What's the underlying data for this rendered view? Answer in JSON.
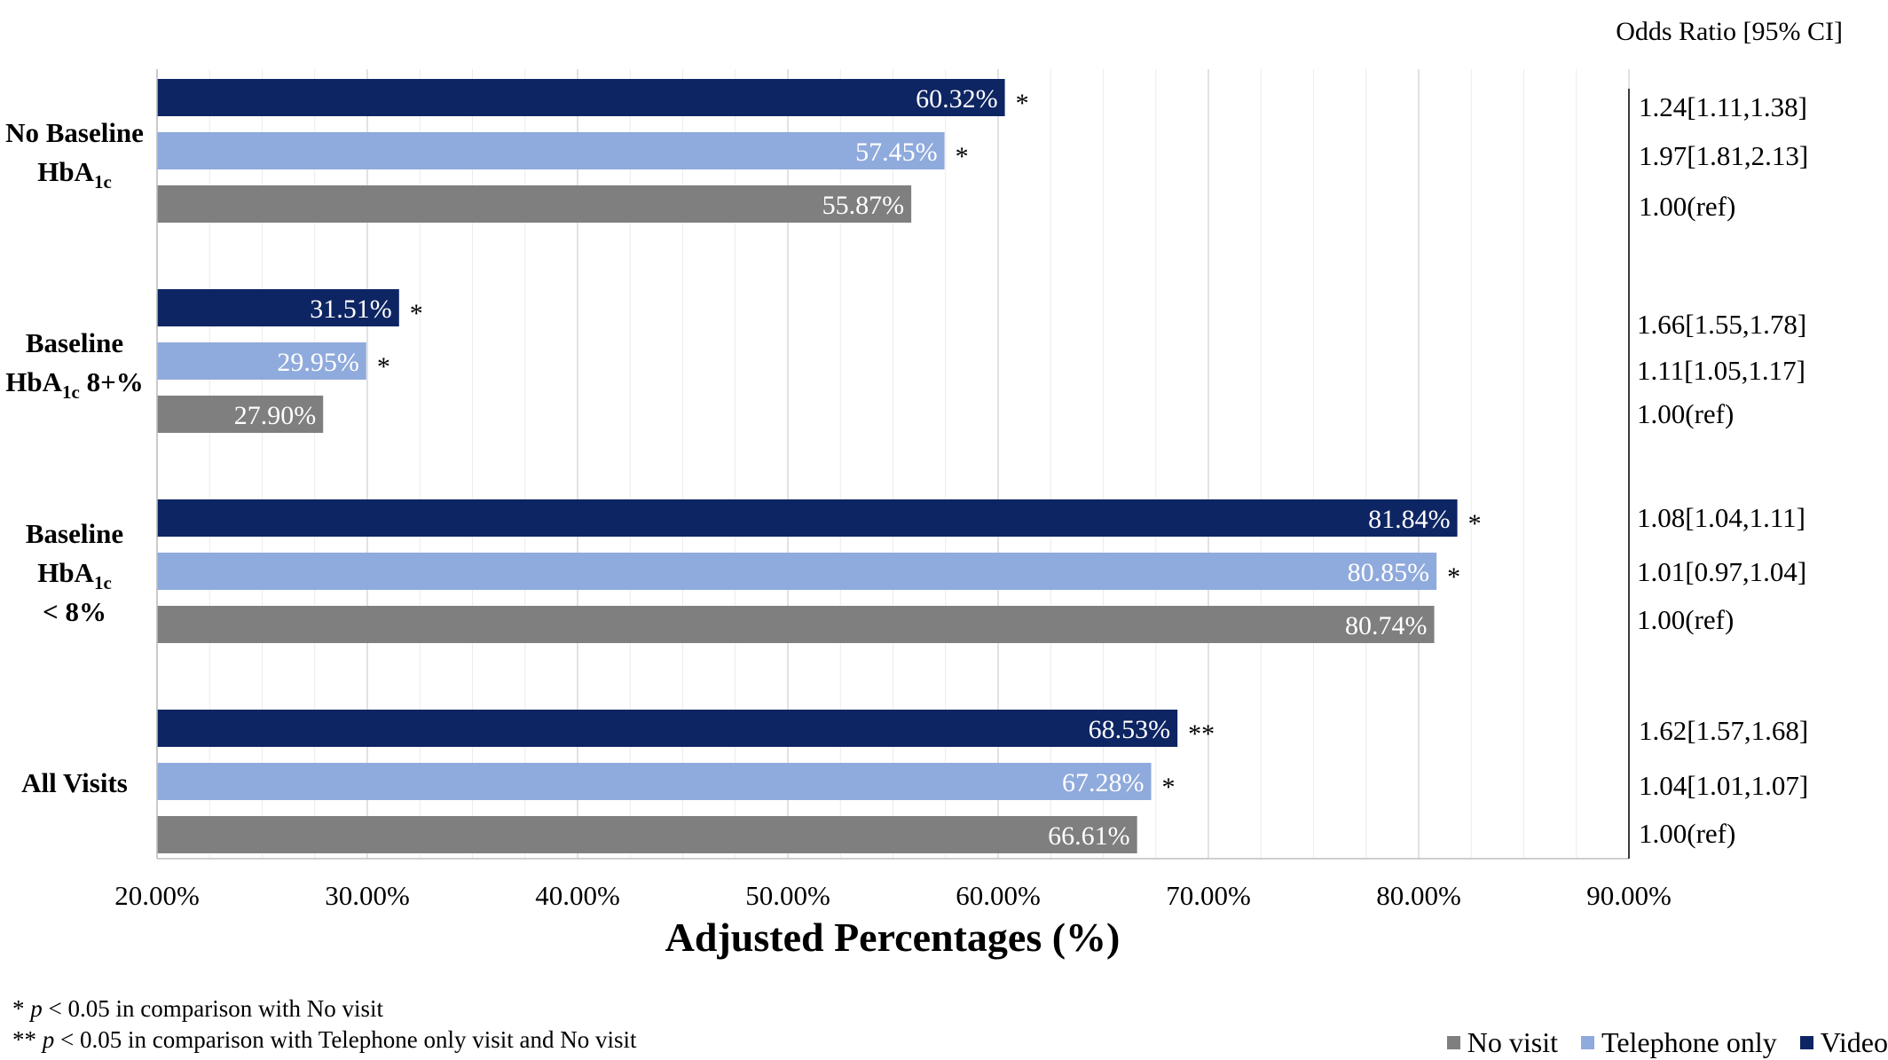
{
  "chart_data": {
    "type": "bar",
    "orientation": "horizontal",
    "title": "",
    "xlabel": "Adjusted Percentages (%)",
    "ylabel": "",
    "xlim": [
      20,
      90
    ],
    "xticks": [
      20,
      30,
      40,
      50,
      60,
      70,
      80,
      90
    ],
    "xtick_labels": [
      "20.00%",
      "30.00%",
      "40.00%",
      "50.00%",
      "60.00%",
      "70.00%",
      "80.00%",
      "90.00%"
    ],
    "odds_header": "Odds Ratio [95% CI]",
    "series_names": [
      "Video",
      "Telephone only",
      "No visit"
    ],
    "colors": {
      "Video": "#0e2563",
      "Telephone only": "#8faadc",
      "No visit": "#7f7f7f"
    },
    "groups": [
      {
        "label_lines": [
          [
            "No Baseline",
            ""
          ],
          [
            "HbA",
            "1c",
            ""
          ]
        ],
        "bars": [
          {
            "series": "Video",
            "value": 60.32,
            "label": "60.32%",
            "sig": "*",
            "odds": "1.24[1.11,1.38]"
          },
          {
            "series": "Telephone only",
            "value": 57.45,
            "label": "57.45%",
            "sig": "*",
            "odds": "1.97[1.81,2.13]"
          },
          {
            "series": "No visit",
            "value": 55.87,
            "label": "55.87%",
            "sig": "",
            "odds": "1.00(ref)"
          }
        ]
      },
      {
        "label_lines": [
          [
            "Baseline",
            ""
          ],
          [
            "HbA",
            "1c",
            " 8+%"
          ]
        ],
        "bars": [
          {
            "series": "Video",
            "value": 31.51,
            "label": "31.51%",
            "sig": "*",
            "odds": "1.66[1.55,1.78]"
          },
          {
            "series": "Telephone only",
            "value": 29.95,
            "label": "29.95%",
            "sig": "*",
            "odds": "1.11[1.05,1.17]"
          },
          {
            "series": "No visit",
            "value": 27.9,
            "label": "27.90%",
            "sig": "",
            "odds": "1.00(ref)"
          }
        ]
      },
      {
        "label_lines": [
          [
            "Baseline",
            ""
          ],
          [
            "HbA",
            "1c",
            ""
          ],
          [
            "< 8%",
            ""
          ]
        ],
        "bars": [
          {
            "series": "Video",
            "value": 81.84,
            "label": "81.84%",
            "sig": "*",
            "odds": "1.08[1.04,1.11]"
          },
          {
            "series": "Telephone only",
            "value": 80.85,
            "label": "80.85%",
            "sig": "*",
            "odds": "1.01[0.97,1.04]"
          },
          {
            "series": "No visit",
            "value": 80.74,
            "label": "80.74%",
            "sig": "",
            "odds": "1.00(ref)"
          }
        ]
      },
      {
        "label_lines": [
          [
            "All Visits",
            ""
          ]
        ],
        "bars": [
          {
            "series": "Video",
            "value": 68.53,
            "label": "68.53%",
            "sig": "**",
            "odds": "1.62[1.57,1.68]"
          },
          {
            "series": "Telephone only",
            "value": 67.28,
            "label": "67.28%",
            "sig": "*",
            "odds": "1.04[1.01,1.07]"
          },
          {
            "series": "No visit",
            "value": 66.61,
            "label": "66.61%",
            "sig": "",
            "odds": "1.00(ref)"
          }
        ]
      }
    ],
    "legend": {
      "position": "bottom-right",
      "items": [
        {
          "name": "No visit",
          "color": "#7f7f7f"
        },
        {
          "name": "Telephone only",
          "color": "#8faadc"
        },
        {
          "name": "Video",
          "color": "#0e2563"
        }
      ]
    }
  },
  "footnotes": {
    "line1": {
      "stars": "* ",
      "p": "p",
      "rest": " < 0.05 in comparison with No visit"
    },
    "line2": {
      "stars": "** ",
      "p": "p",
      "rest": " < 0.05 in comparison with Telephone only visit and No visit"
    }
  }
}
